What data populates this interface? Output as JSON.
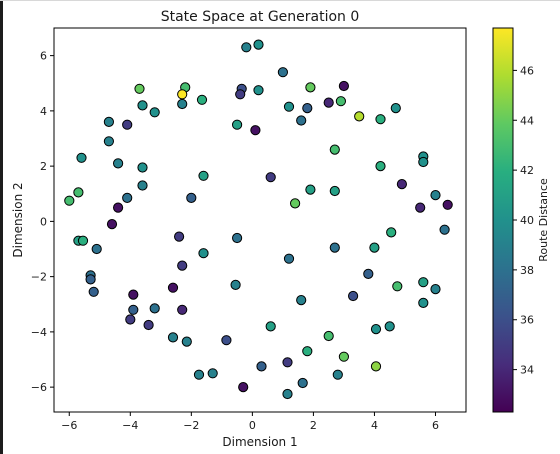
{
  "chart_data": {
    "type": "scatter",
    "title": "State Space at Generation 0",
    "xlabel": "Dimension 1",
    "ylabel": "Dimension 2",
    "xlim": [
      -6.5,
      7.0
    ],
    "ylim": [
      -6.9,
      7.0
    ],
    "xticks": [
      -6,
      -4,
      -2,
      0,
      2,
      4,
      6
    ],
    "yticks": [
      -6,
      -4,
      -2,
      0,
      2,
      4,
      6
    ],
    "grid": false,
    "colormap": "viridis",
    "colorbar": {
      "label": "Route Distance",
      "range": [
        32.3,
        47.7
      ],
      "ticks": [
        34,
        36,
        38,
        40,
        42,
        44,
        46
      ]
    },
    "marker_edge_color": "#000000",
    "points": [
      {
        "x": -0.2,
        "y": 6.3,
        "c": 39
      },
      {
        "x": 0.2,
        "y": 6.4,
        "c": 40
      },
      {
        "x": 1.0,
        "y": 5.4,
        "c": 38
      },
      {
        "x": -3.7,
        "y": 4.8,
        "c": 44
      },
      {
        "x": -2.2,
        "y": 4.85,
        "c": 43
      },
      {
        "x": -2.3,
        "y": 4.6,
        "c": 47.7
      },
      {
        "x": -0.35,
        "y": 4.8,
        "c": 36
      },
      {
        "x": -0.4,
        "y": 4.6,
        "c": 35
      },
      {
        "x": 0.2,
        "y": 4.75,
        "c": 40
      },
      {
        "x": 1.9,
        "y": 4.85,
        "c": 44
      },
      {
        "x": 3.0,
        "y": 4.9,
        "c": 33
      },
      {
        "x": -3.6,
        "y": 4.2,
        "c": 40
      },
      {
        "x": -3.2,
        "y": 3.95,
        "c": 40
      },
      {
        "x": -2.3,
        "y": 4.25,
        "c": 39
      },
      {
        "x": -1.65,
        "y": 4.4,
        "c": 42
      },
      {
        "x": 1.2,
        "y": 4.15,
        "c": 40
      },
      {
        "x": 1.8,
        "y": 4.1,
        "c": 37
      },
      {
        "x": 2.5,
        "y": 4.3,
        "c": 34
      },
      {
        "x": 2.9,
        "y": 4.35,
        "c": 43
      },
      {
        "x": 3.5,
        "y": 3.8,
        "c": 46
      },
      {
        "x": 4.2,
        "y": 3.7,
        "c": 42
      },
      {
        "x": 4.7,
        "y": 4.1,
        "c": 40
      },
      {
        "x": -4.7,
        "y": 3.6,
        "c": 39
      },
      {
        "x": -4.1,
        "y": 3.5,
        "c": 35
      },
      {
        "x": 1.6,
        "y": 3.65,
        "c": 38
      },
      {
        "x": -0.5,
        "y": 3.5,
        "c": 41
      },
      {
        "x": 0.1,
        "y": 3.3,
        "c": 33
      },
      {
        "x": -4.7,
        "y": 2.9,
        "c": 39
      },
      {
        "x": 2.7,
        "y": 2.6,
        "c": 43
      },
      {
        "x": -5.6,
        "y": 2.3,
        "c": 40
      },
      {
        "x": -4.4,
        "y": 2.1,
        "c": 39
      },
      {
        "x": -3.6,
        "y": 1.95,
        "c": 40
      },
      {
        "x": 4.2,
        "y": 2.0,
        "c": 42
      },
      {
        "x": 5.6,
        "y": 2.35,
        "c": 40
      },
      {
        "x": 5.6,
        "y": 2.15,
        "c": 40
      },
      {
        "x": -1.6,
        "y": 1.65,
        "c": 41
      },
      {
        "x": 0.6,
        "y": 1.6,
        "c": 35
      },
      {
        "x": -3.6,
        "y": 1.3,
        "c": 39
      },
      {
        "x": 1.9,
        "y": 1.15,
        "c": 41
      },
      {
        "x": 2.7,
        "y": 1.1,
        "c": 41
      },
      {
        "x": 4.9,
        "y": 1.35,
        "c": 34
      },
      {
        "x": -5.7,
        "y": 1.05,
        "c": 43
      },
      {
        "x": -6.0,
        "y": 0.75,
        "c": 43
      },
      {
        "x": -4.1,
        "y": 0.85,
        "c": 38
      },
      {
        "x": -2.0,
        "y": 0.85,
        "c": 37
      },
      {
        "x": 1.4,
        "y": 0.65,
        "c": 44
      },
      {
        "x": 6.0,
        "y": 0.95,
        "c": 39
      },
      {
        "x": -4.4,
        "y": 0.5,
        "c": 33
      },
      {
        "x": 5.5,
        "y": 0.5,
        "c": 34
      },
      {
        "x": 6.4,
        "y": 0.6,
        "c": 33
      },
      {
        "x": -4.6,
        "y": -0.1,
        "c": 33
      },
      {
        "x": 6.3,
        "y": -0.3,
        "c": 38
      },
      {
        "x": -5.7,
        "y": -0.7,
        "c": 41
      },
      {
        "x": -5.55,
        "y": -0.7,
        "c": 42
      },
      {
        "x": -2.4,
        "y": -0.55,
        "c": 35
      },
      {
        "x": -0.5,
        "y": -0.6,
        "c": 38
      },
      {
        "x": 4.55,
        "y": -0.4,
        "c": 42
      },
      {
        "x": -5.1,
        "y": -1.0,
        "c": 38
      },
      {
        "x": -1.6,
        "y": -1.15,
        "c": 40
      },
      {
        "x": 2.7,
        "y": -0.95,
        "c": 38
      },
      {
        "x": 4.0,
        "y": -0.95,
        "c": 41
      },
      {
        "x": -2.3,
        "y": -1.6,
        "c": 35
      },
      {
        "x": 1.2,
        "y": -1.35,
        "c": 38
      },
      {
        "x": -5.3,
        "y": -1.95,
        "c": 38
      },
      {
        "x": -5.3,
        "y": -2.1,
        "c": 37
      },
      {
        "x": 3.8,
        "y": -1.9,
        "c": 37
      },
      {
        "x": 5.6,
        "y": -2.2,
        "c": 41
      },
      {
        "x": 4.75,
        "y": -2.35,
        "c": 43
      },
      {
        "x": 6.0,
        "y": -2.45,
        "c": 39
      },
      {
        "x": -0.55,
        "y": -2.3,
        "c": 39
      },
      {
        "x": -2.6,
        "y": -2.4,
        "c": 33
      },
      {
        "x": -5.2,
        "y": -2.55,
        "c": 37
      },
      {
        "x": -3.9,
        "y": -2.65,
        "c": 33
      },
      {
        "x": 1.6,
        "y": -2.85,
        "c": 39
      },
      {
        "x": 3.3,
        "y": -2.7,
        "c": 36
      },
      {
        "x": 5.6,
        "y": -2.95,
        "c": 40
      },
      {
        "x": -3.9,
        "y": -3.2,
        "c": 37
      },
      {
        "x": -3.2,
        "y": -3.15,
        "c": 38
      },
      {
        "x": -2.3,
        "y": -3.2,
        "c": 34
      },
      {
        "x": -4.0,
        "y": -3.55,
        "c": 35
      },
      {
        "x": -3.4,
        "y": -3.75,
        "c": 35
      },
      {
        "x": 0.6,
        "y": -3.8,
        "c": 41
      },
      {
        "x": 4.5,
        "y": -3.8,
        "c": 40
      },
      {
        "x": 4.05,
        "y": -3.9,
        "c": 40
      },
      {
        "x": -2.6,
        "y": -4.2,
        "c": 39
      },
      {
        "x": -2.15,
        "y": -4.35,
        "c": 39
      },
      {
        "x": -0.85,
        "y": -4.3,
        "c": 36
      },
      {
        "x": 2.5,
        "y": -4.15,
        "c": 43
      },
      {
        "x": 1.8,
        "y": -4.7,
        "c": 42
      },
      {
        "x": 3.0,
        "y": -4.9,
        "c": 44
      },
      {
        "x": 1.15,
        "y": -5.1,
        "c": 35
      },
      {
        "x": 4.05,
        "y": -5.25,
        "c": 45
      },
      {
        "x": -1.75,
        "y": -5.55,
        "c": 39
      },
      {
        "x": -1.3,
        "y": -5.5,
        "c": 39
      },
      {
        "x": 0.3,
        "y": -5.25,
        "c": 37
      },
      {
        "x": 2.8,
        "y": -5.55,
        "c": 39
      },
      {
        "x": -0.3,
        "y": -6.0,
        "c": 33
      },
      {
        "x": 1.65,
        "y": -5.85,
        "c": 38
      },
      {
        "x": 1.15,
        "y": -6.25,
        "c": 39
      }
    ]
  }
}
